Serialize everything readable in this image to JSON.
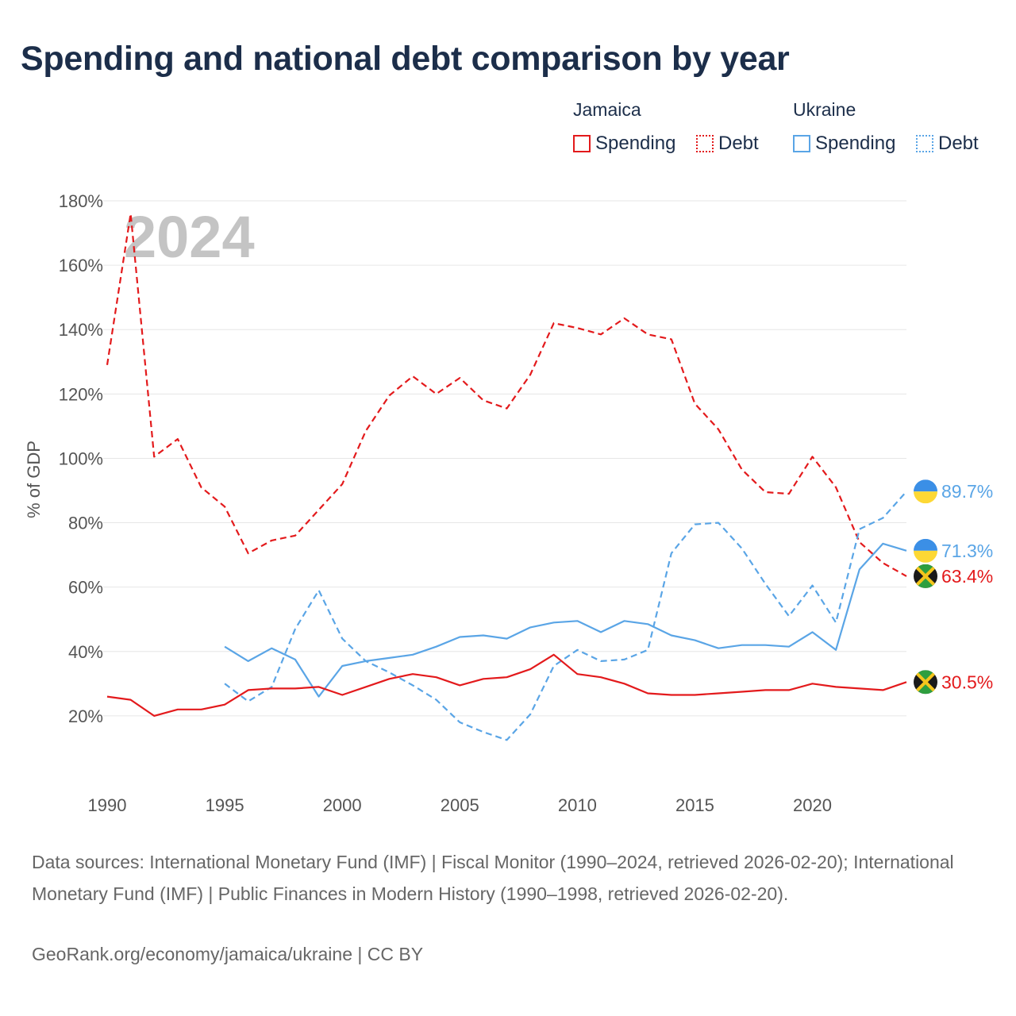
{
  "title": "Spending and national debt comparison by year",
  "legend": {
    "groups": [
      {
        "country": "Jamaica",
        "spending_label": "Spending",
        "debt_label": "Debt",
        "color": "#e31a1c"
      },
      {
        "country": "Ukraine",
        "spending_label": "Spending",
        "debt_label": "Debt",
        "color": "#5aa5e6"
      }
    ]
  },
  "footer": {
    "sources": "Data sources: International Monetary Fund (IMF) | Fiscal Monitor (1990–2024, retrieved 2026-02-20); International Monetary Fund (IMF) | Public Finances in Modern History (1990–1998, retrieved 2026-02-20).",
    "credit": "GeoRank.org/economy/jamaica/ukraine | CC BY"
  },
  "chart_data": {
    "type": "line",
    "year_label": "2024",
    "ylabel": "% of GDP",
    "ylim": [
      0,
      180
    ],
    "xlim": [
      1990,
      2024
    ],
    "y_ticks": [
      20,
      40,
      60,
      80,
      100,
      120,
      140,
      160,
      180
    ],
    "y_tick_labels": [
      "20%",
      "40%",
      "60%",
      "80%",
      "100%",
      "120%",
      "140%",
      "160%",
      "180%"
    ],
    "x_ticks": [
      1990,
      1995,
      2000,
      2005,
      2010,
      2015,
      2020
    ],
    "x_tick_labels": [
      "1990",
      "1995",
      "2000",
      "2005",
      "2010",
      "2015",
      "2020"
    ],
    "series": [
      {
        "name": "Jamaica Debt",
        "country": "Jamaica",
        "kind": "debt",
        "dashed": true,
        "color": "#e31a1c",
        "end_label": "63.4%",
        "x": [
          1990,
          1991,
          1992,
          1993,
          1994,
          1995,
          1996,
          1997,
          1998,
          1999,
          2000,
          2001,
          2002,
          2003,
          2004,
          2005,
          2006,
          2007,
          2008,
          2009,
          2010,
          2011,
          2012,
          2013,
          2014,
          2015,
          2016,
          2017,
          2018,
          2019,
          2020,
          2021,
          2022,
          2023,
          2024
        ],
        "values": [
          129,
          176,
          100.5,
          106,
          91,
          85,
          70.5,
          74.5,
          76,
          84,
          92,
          108.5,
          119.5,
          125.5,
          120,
          125,
          118,
          115.5,
          126,
          142,
          140.5,
          138.5,
          143.5,
          138.5,
          137,
          117,
          109,
          96.5,
          89.5,
          89,
          100.5,
          91,
          74,
          67.5,
          63.4
        ]
      },
      {
        "name": "Ukraine Debt",
        "country": "Ukraine",
        "kind": "debt",
        "dashed": true,
        "color": "#5aa5e6",
        "end_label": "89.7%",
        "x": [
          1995,
          1996,
          1997,
          1998,
          1999,
          2000,
          2001,
          2002,
          2003,
          2004,
          2005,
          2006,
          2007,
          2008,
          2009,
          2010,
          2011,
          2012,
          2013,
          2014,
          2015,
          2016,
          2017,
          2018,
          2019,
          2020,
          2021,
          2022,
          2023,
          2024
        ],
        "values": [
          30,
          24.5,
          29,
          47,
          59,
          44,
          37,
          33.5,
          29.5,
          25,
          18,
          15,
          12.5,
          20.5,
          35.5,
          40.5,
          37,
          37.5,
          40.5,
          70.5,
          79.5,
          80,
          72,
          61,
          51,
          60.5,
          49,
          78,
          81.5,
          89.7
        ]
      },
      {
        "name": "Ukraine Spending",
        "country": "Ukraine",
        "kind": "spending",
        "dashed": false,
        "color": "#5aa5e6",
        "end_label": "71.3%",
        "x": [
          1995,
          1996,
          1997,
          1998,
          1999,
          2000,
          2001,
          2002,
          2003,
          2004,
          2005,
          2006,
          2007,
          2008,
          2009,
          2010,
          2011,
          2012,
          2013,
          2014,
          2015,
          2016,
          2017,
          2018,
          2019,
          2020,
          2021,
          2022,
          2023,
          2024
        ],
        "values": [
          41.5,
          37,
          41,
          37.5,
          26,
          35.5,
          37,
          38,
          39,
          41.5,
          44.5,
          45,
          44,
          47.5,
          49,
          49.5,
          46,
          49.5,
          48.5,
          45,
          43.5,
          41,
          42,
          42,
          41.5,
          46,
          40.5,
          65.5,
          73.5,
          71.3
        ]
      },
      {
        "name": "Jamaica Spending",
        "country": "Jamaica",
        "kind": "spending",
        "dashed": false,
        "color": "#e31a1c",
        "end_label": "30.5%",
        "x": [
          1990,
          1991,
          1992,
          1993,
          1994,
          1995,
          1996,
          1997,
          1998,
          1999,
          2000,
          2001,
          2002,
          2003,
          2004,
          2005,
          2006,
          2007,
          2008,
          2009,
          2010,
          2011,
          2012,
          2013,
          2014,
          2015,
          2016,
          2017,
          2018,
          2019,
          2020,
          2021,
          2022,
          2023,
          2024
        ],
        "values": [
          26,
          25,
          20,
          22,
          22,
          23.5,
          28,
          28.5,
          28.5,
          29,
          26.5,
          29,
          31.5,
          33,
          32,
          29.5,
          31.5,
          32,
          34.5,
          39,
          33,
          32,
          30,
          27,
          26.5,
          26.5,
          27,
          27.5,
          28,
          28,
          30,
          29,
          28.5,
          28,
          30.5
        ]
      }
    ]
  }
}
